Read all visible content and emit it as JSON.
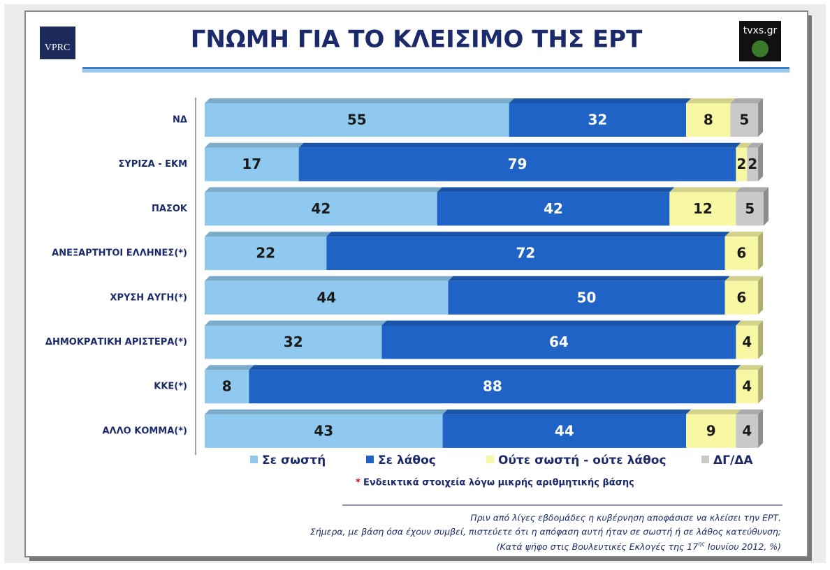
{
  "logo_left": "VPRC",
  "logo_right": "tvxs.gr",
  "chart_data": {
    "type": "stacked-bar-horizontal",
    "title": "ΓΝΩΜΗ ΓΙΑ ΤΟ ΚΛΕΙΣΙΜΟ ΤΗΣ ΕΡΤ",
    "categories": [
      "ΝΔ",
      "ΣΥΡΙΖΑ - ΕΚΜ",
      "ΠΑΣΟΚ",
      "ΑΝΕΞΑΡΤΗΤΟΙ ΕΛΛΗΝΕΣ(*)",
      "ΧΡΥΣΗ ΑΥΓΗ(*)",
      "ΔΗΜΟΚΡΑΤΙΚΗ ΑΡΙΣΤΕΡΑ(*)",
      "ΚΚΕ(*)",
      "ΑΛΛΟ ΚΟΜΜΑ(*)"
    ],
    "series": [
      {
        "name": "Σε σωστή",
        "color": "#8fc9ef",
        "values": [
          55,
          17,
          42,
          22,
          44,
          32,
          8,
          43
        ]
      },
      {
        "name": "Σε λάθος",
        "color": "#1f63c6",
        "values": [
          32,
          79,
          42,
          72,
          50,
          64,
          88,
          44
        ]
      },
      {
        "name": "Ούτε σωστή - ούτε λάθος",
        "color": "#f8f7a3",
        "values": [
          8,
          2,
          12,
          6,
          6,
          4,
          4,
          9
        ]
      },
      {
        "name": "ΔΓ/ΔΑ",
        "color": "#c9c9c9",
        "values": [
          5,
          2,
          5,
          null,
          null,
          null,
          null,
          4
        ]
      }
    ],
    "footnote_mark": "*",
    "footnote": "Ενδεικτικά στοιχεία λόγω μικρής αριθμητικής βάσης",
    "question": [
      "Πριν από λίγες εβδομάδες η κυβέρνηση αποφάσισε να κλείσει την ΕΡΤ.",
      "Σήμερα, με βάση όσα έχουν συμβεί, πιστεύετε ότι η απόφαση αυτή ήταν σε σωστή ή σε  λάθος κατεύθυνση;"
    ],
    "source_before": "(Κατά ψήφο στις Βουλευτικές Εκλογές της 17",
    "source_sup": "ης",
    "source_after": " Ιουνίου 2012, %)"
  }
}
